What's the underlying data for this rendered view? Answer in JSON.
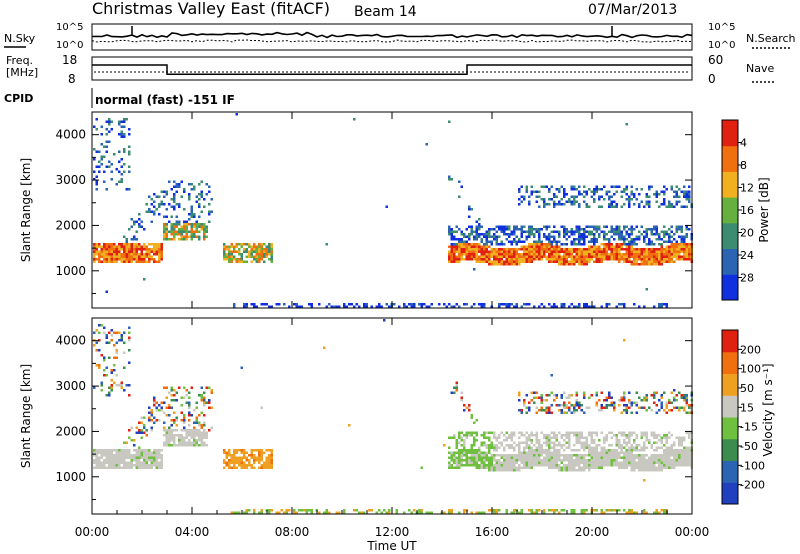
{
  "header": {
    "title": "Christmas Valley East (fitACF)",
    "beam": "Beam 14",
    "date": "07/Mar/2013"
  },
  "nsky_panel": {
    "left_label": "N.Sky",
    "right_label": "N.Search",
    "left_ticks": [
      "10^5",
      "10^0"
    ],
    "right_ticks": [
      "10^5",
      "10^0"
    ]
  },
  "freq_panel": {
    "left_label_1": "Freq.",
    "left_label_2": "[MHz]",
    "right_label": "Nave",
    "left_ticks": [
      "18",
      "8"
    ],
    "right_ticks": [
      "60",
      "0"
    ],
    "freq_steps": [
      [
        0,
        14.5
      ],
      [
        3.0,
        14.5
      ],
      [
        3.0,
        10.5
      ],
      [
        15.0,
        10.5
      ],
      [
        15.0,
        14.5
      ],
      [
        24,
        14.5
      ]
    ]
  },
  "cpid": {
    "label": "CPID",
    "text": "normal (fast) -151 IF"
  },
  "chart_data": [
    {
      "type": "heatmap",
      "name": "power",
      "ylabel": "Slant Range [km]",
      "ylim": [
        180,
        4500
      ],
      "yticks": [
        "1000",
        "2000",
        "3000",
        "4000"
      ],
      "xlim": [
        0,
        24
      ],
      "colorbar_label": "Power [dB]",
      "colorbar_ticks": [
        "4",
        "8",
        "12",
        "16",
        "20",
        "24",
        "28"
      ],
      "colors": [
        "#1030e0",
        "#2c64b4",
        "#3c8c72",
        "#66b040",
        "#f0b020",
        "#f07010",
        "#e02010"
      ]
    },
    {
      "type": "heatmap",
      "name": "velocity",
      "ylabel": "Slant Range [km]",
      "ylim": [
        180,
        4500
      ],
      "yticks": [
        "1000",
        "2000",
        "3000",
        "4000"
      ],
      "xlim": [
        0,
        24
      ],
      "xlabel": "Time UT",
      "xticks": [
        "00:00",
        "04:00",
        "08:00",
        "12:00",
        "16:00",
        "20:00",
        "00:00"
      ],
      "colorbar_label": "Velocity [m s⁻¹]",
      "colorbar_ticks": [
        "200",
        "100",
        "50",
        "15",
        "-15",
        "-50",
        "-100",
        "-200"
      ],
      "colors": [
        "#2040c0",
        "#2c64b4",
        "#3c8c50",
        "#70c040",
        "#c8c8c0",
        "#f0a020",
        "#f07010",
        "#e02010"
      ]
    }
  ]
}
